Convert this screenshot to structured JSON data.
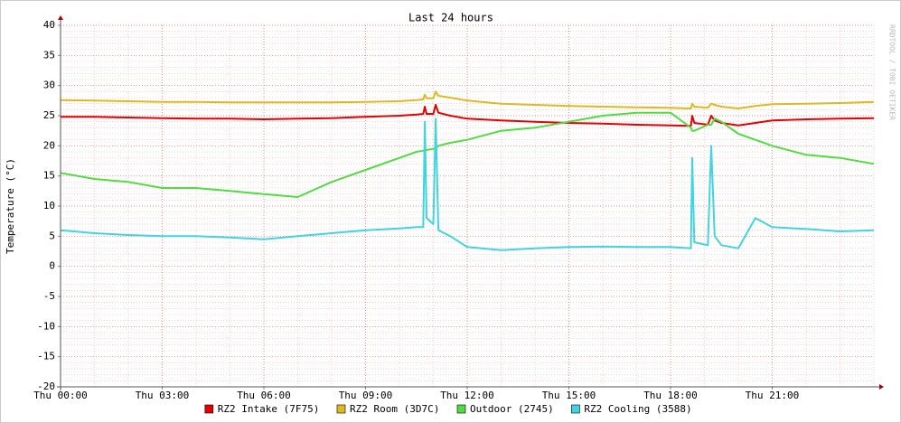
{
  "chart_data": {
    "type": "line",
    "title": "Last 24 hours",
    "y_label": "Temperature (°C)",
    "watermark": "RRDTOOL / TOBI OETIKER",
    "x": [
      0,
      1,
      2,
      3,
      4,
      5,
      6,
      7,
      8,
      9,
      10,
      10.5,
      10.7,
      10.75,
      10.8,
      11,
      11.07,
      11.15,
      11.5,
      12,
      13,
      14,
      15,
      16,
      17,
      18,
      18.6,
      18.64,
      18.7,
      19.1,
      19.2,
      19.3,
      19.5,
      20,
      20.5,
      21,
      22,
      23,
      24
    ],
    "series": [
      {
        "name": "RZ2 Intake (7F75)",
        "color": "#e80000",
        "values": [
          24.8,
          24.8,
          24.7,
          24.6,
          24.5,
          24.5,
          24.4,
          24.5,
          24.6,
          24.8,
          25,
          25.2,
          25.3,
          26.5,
          25.3,
          25.3,
          26.8,
          25.5,
          25,
          24.5,
          24.2,
          24,
          23.8,
          23.7,
          23.5,
          23.4,
          23.3,
          25,
          23.8,
          23.5,
          25,
          24.2,
          23.8,
          23.4,
          23.8,
          24.2,
          24.4,
          24.5,
          24.6
        ]
      },
      {
        "name": "RZ2 Room (3D7C)",
        "color": "#e0b820",
        "values": [
          27.6,
          27.5,
          27.4,
          27.3,
          27.3,
          27.2,
          27.2,
          27.2,
          27.2,
          27.3,
          27.4,
          27.6,
          27.7,
          28.5,
          27.9,
          27.9,
          29,
          28.3,
          28,
          27.5,
          27,
          26.8,
          26.6,
          26.5,
          26.4,
          26.3,
          26.2,
          27,
          26.5,
          26.3,
          27,
          26.8,
          26.5,
          26.2,
          26.6,
          26.9,
          27,
          27.1,
          27.3
        ]
      },
      {
        "name": "Outdoor (2745)",
        "color": "#50dc40",
        "values": [
          15.5,
          14.5,
          14,
          13,
          13,
          12.5,
          12,
          11.5,
          14,
          16,
          18,
          19,
          19.2,
          19.3,
          19.3,
          19.5,
          19.6,
          20,
          20.5,
          21,
          22.5,
          23,
          24,
          25,
          25.5,
          25.5,
          23,
          22.5,
          22.5,
          23.5,
          23.5,
          24.5,
          24,
          22,
          21,
          20,
          18.5,
          18,
          17
        ]
      },
      {
        "name": "RZ2 Cooling (3588)",
        "color": "#40d4e0",
        "values": [
          6,
          5.5,
          5.2,
          5,
          5,
          4.8,
          4.5,
          5,
          5.5,
          6,
          6.3,
          6.5,
          6.5,
          24,
          8,
          7,
          24.5,
          6,
          5,
          3.2,
          2.7,
          3,
          3.2,
          3.3,
          3.2,
          3.2,
          3,
          18,
          4,
          3.5,
          20,
          5,
          3.5,
          3,
          8,
          6.5,
          6.2,
          5.8,
          6
        ]
      }
    ],
    "xlim": [
      0,
      24
    ],
    "xticks": [
      {
        "value": 0,
        "label": "Thu 00:00"
      },
      {
        "value": 3,
        "label": "Thu 03:00"
      },
      {
        "value": 6,
        "label": "Thu 06:00"
      },
      {
        "value": 9,
        "label": "Thu 09:00"
      },
      {
        "value": 12,
        "label": "Thu 12:00"
      },
      {
        "value": 15,
        "label": "Thu 15:00"
      },
      {
        "value": 18,
        "label": "Thu 18:00"
      },
      {
        "value": 21,
        "label": "Thu 21:00"
      }
    ],
    "ylim": [
      -20,
      40
    ],
    "yticks": [
      -20,
      -15,
      -10,
      -5,
      0,
      5,
      10,
      15,
      20,
      25,
      30,
      35,
      40
    ],
    "grid": true
  }
}
